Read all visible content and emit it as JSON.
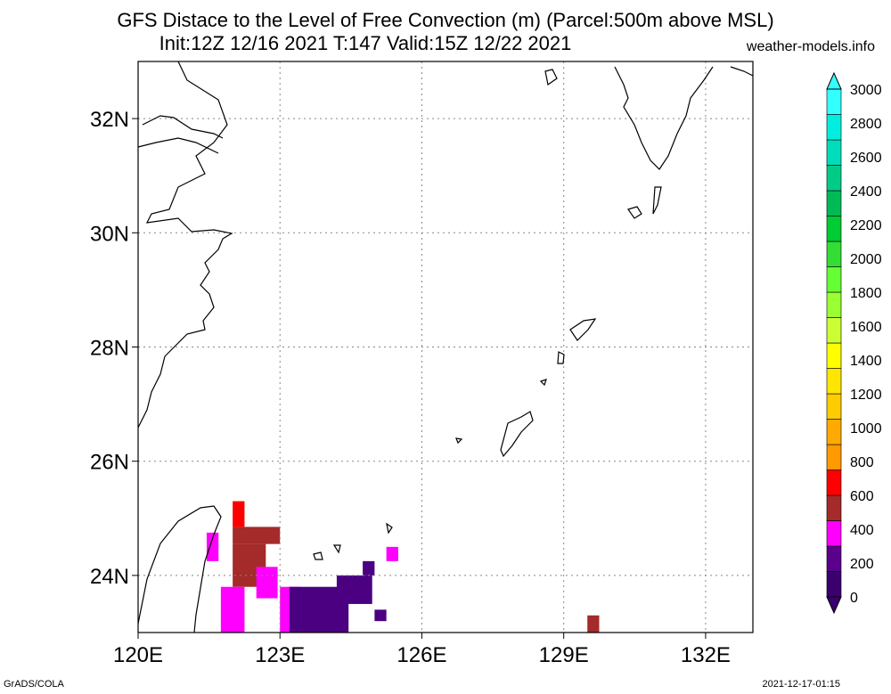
{
  "title_line1": "GFS Distace to the Level of Free Convection (m) (Parcel:500m above MSL)",
  "title_line2": "Init:12Z 12/16 2021 T:147 Valid:15Z 12/22 2021",
  "site": "weather-models.info",
  "footer_left": "GrADS/COLA",
  "footer_right": "2021-12-17-01:15",
  "map": {
    "lon_range": [
      120,
      133
    ],
    "lat_range": [
      23,
      33
    ],
    "lon_ticks": [
      "120E",
      "123E",
      "126E",
      "129E",
      "132E"
    ],
    "lat_ticks": [
      "24N",
      "26N",
      "28N",
      "30N",
      "32N"
    ],
    "grid": "dotted"
  },
  "colorbar": {
    "levels": [
      "0",
      "200",
      "400",
      "600",
      "800",
      "1000",
      "1200",
      "1400",
      "1600",
      "1800",
      "2000",
      "2200",
      "2400",
      "2600",
      "2800",
      "3000"
    ],
    "colors": [
      "#3a006e",
      "#5a008c",
      "#ff00ff",
      "#a52a2a",
      "#ff0000",
      "#ff9900",
      "#ffaa00",
      "#ffcc00",
      "#ffe600",
      "#ffff00",
      "#ccff33",
      "#99ff33",
      "#66ff33",
      "#33dd33",
      "#00cc33",
      "#00bb55",
      "#00cc88",
      "#00ddbb",
      "#00eedd",
      "#33ffff"
    ]
  },
  "shaded_cells": [
    {
      "lon": 121.45,
      "lat": 24.25,
      "w": 0.25,
      "h": 0.5,
      "color": "#ff00ff"
    },
    {
      "lon": 122.0,
      "lat": 24.85,
      "w": 0.25,
      "h": 0.45,
      "color": "#ff0000"
    },
    {
      "lon": 122.0,
      "lat": 24.55,
      "w": 1.0,
      "h": 0.3,
      "color": "#a52a2a"
    },
    {
      "lon": 122.0,
      "lat": 23.8,
      "w": 0.7,
      "h": 0.75,
      "color": "#a52a2a"
    },
    {
      "lon": 121.75,
      "lat": 23.0,
      "w": 0.5,
      "h": 0.8,
      "color": "#ff00ff"
    },
    {
      "lon": 122.5,
      "lat": 23.6,
      "w": 0.45,
      "h": 0.55,
      "color": "#ff00ff"
    },
    {
      "lon": 123.0,
      "lat": 23.0,
      "w": 0.45,
      "h": 0.8,
      "color": "#ff00ff"
    },
    {
      "lon": 123.2,
      "lat": 23.0,
      "w": 1.25,
      "h": 0.8,
      "color": "#4b0082"
    },
    {
      "lon": 124.2,
      "lat": 23.5,
      "w": 0.75,
      "h": 0.5,
      "color": "#4b0082"
    },
    {
      "lon": 124.75,
      "lat": 24.0,
      "w": 0.25,
      "h": 0.25,
      "color": "#4b0082"
    },
    {
      "lon": 125.0,
      "lat": 23.2,
      "w": 0.25,
      "h": 0.2,
      "color": "#4b0082"
    },
    {
      "lon": 125.25,
      "lat": 24.25,
      "w": 0.25,
      "h": 0.25,
      "color": "#ff00ff"
    },
    {
      "lon": 129.5,
      "lat": 23.0,
      "w": 0.25,
      "h": 0.3,
      "color": "#a52a2a"
    }
  ]
}
